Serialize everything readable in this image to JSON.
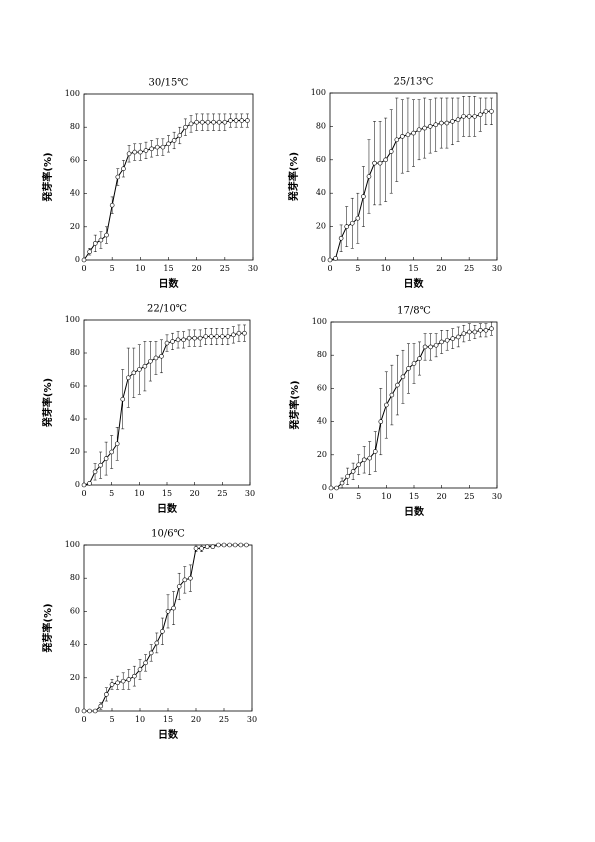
{
  "chart_data": [
    {
      "type": "line",
      "title": "30/15℃",
      "xlabel": "日数",
      "ylabel": "発芽率(%)",
      "color": "#000000",
      "x": [
        0,
        1,
        2,
        3,
        4,
        5,
        6,
        7,
        8,
        9,
        10,
        11,
        12,
        13,
        14,
        15,
        16,
        17,
        18,
        19,
        20,
        21,
        22,
        23,
        24,
        25,
        26,
        27,
        28,
        29
      ],
      "values": [
        0,
        5,
        10,
        12,
        15,
        33,
        50,
        55,
        64,
        65,
        65,
        66,
        67,
        68,
        68,
        70,
        72,
        75,
        80,
        82,
        83,
        83,
        83,
        83,
        83,
        83,
        84,
        84,
        84,
        84
      ],
      "errors": [
        0,
        2,
        5,
        5,
        5,
        5,
        5,
        5,
        5,
        5,
        5,
        5,
        5,
        5,
        5,
        5,
        5,
        5,
        5,
        5,
        5,
        5,
        5,
        5,
        5,
        5,
        4,
        4,
        4,
        4
      ],
      "xlim": [
        0,
        30
      ],
      "ylim": [
        0,
        100
      ],
      "xticks": [
        0,
        5,
        10,
        15,
        20,
        25,
        30
      ],
      "yticks": [
        0,
        20,
        40,
        60,
        80,
        100
      ]
    },
    {
      "type": "line",
      "title": "25/13℃",
      "xlabel": "日数",
      "ylabel": "発芽率(%)",
      "color": "#000000",
      "x": [
        0,
        1,
        2,
        3,
        4,
        5,
        6,
        7,
        8,
        9,
        10,
        11,
        12,
        13,
        14,
        15,
        16,
        17,
        18,
        19,
        20,
        21,
        22,
        23,
        24,
        25,
        26,
        27,
        28,
        29
      ],
      "values": [
        0,
        1,
        13,
        20,
        22,
        25,
        38,
        50,
        58,
        58,
        60,
        65,
        72,
        74,
        75,
        76,
        78,
        79,
        80,
        81,
        82,
        82,
        83,
        84,
        86,
        86,
        86,
        87,
        89,
        89
      ],
      "errors": [
        0,
        1,
        8,
        12,
        15,
        15,
        18,
        22,
        25,
        25,
        25,
        25,
        25,
        22,
        22,
        20,
        18,
        18,
        16,
        16,
        15,
        15,
        14,
        13,
        12,
        12,
        12,
        10,
        8,
        8
      ],
      "xlim": [
        0,
        30
      ],
      "ylim": [
        0,
        100
      ],
      "xticks": [
        0,
        5,
        10,
        15,
        20,
        25,
        30
      ],
      "yticks": [
        0,
        20,
        40,
        60,
        80,
        100
      ]
    },
    {
      "type": "line",
      "title": "22/10℃",
      "xlabel": "日数",
      "ylabel": "発芽率(%)",
      "color": "#000000",
      "x": [
        0,
        1,
        2,
        3,
        4,
        5,
        6,
        7,
        8,
        9,
        10,
        11,
        12,
        13,
        14,
        15,
        16,
        17,
        18,
        19,
        20,
        21,
        22,
        23,
        24,
        25,
        26,
        27,
        28,
        29
      ],
      "values": [
        0,
        1,
        8,
        12,
        16,
        20,
        25,
        52,
        65,
        68,
        70,
        72,
        75,
        77,
        78,
        86,
        87,
        88,
        88,
        89,
        89,
        89,
        90,
        90,
        90,
        90,
        90,
        91,
        92,
        92
      ],
      "errors": [
        0,
        1,
        5,
        8,
        10,
        10,
        10,
        18,
        18,
        15,
        15,
        15,
        12,
        10,
        10,
        5,
        5,
        5,
        5,
        5,
        5,
        5,
        5,
        5,
        5,
        5,
        5,
        5,
        5,
        5
      ],
      "xlim": [
        0,
        30
      ],
      "ylim": [
        0,
        100
      ],
      "xticks": [
        0,
        5,
        10,
        15,
        20,
        25,
        30
      ],
      "yticks": [
        0,
        20,
        40,
        60,
        80,
        100
      ]
    },
    {
      "type": "line",
      "title": "17/8℃",
      "xlabel": "日数",
      "ylabel": "発芽率(%)",
      "color": "#000000",
      "x": [
        0,
        1,
        2,
        3,
        4,
        5,
        6,
        7,
        8,
        9,
        10,
        11,
        12,
        13,
        14,
        15,
        16,
        17,
        18,
        19,
        20,
        21,
        22,
        23,
        24,
        25,
        26,
        27,
        28,
        29
      ],
      "values": [
        0,
        0,
        3,
        7,
        10,
        14,
        17,
        18,
        22,
        40,
        50,
        56,
        62,
        67,
        72,
        75,
        78,
        85,
        85,
        86,
        88,
        89,
        90,
        91,
        93,
        94,
        94,
        95,
        95,
        96
      ],
      "errors": [
        0,
        0,
        3,
        5,
        5,
        6,
        8,
        10,
        12,
        20,
        20,
        18,
        18,
        16,
        15,
        12,
        10,
        8,
        8,
        7,
        7,
        6,
        6,
        6,
        5,
        5,
        4,
        4,
        4,
        4
      ],
      "xlim": [
        0,
        30
      ],
      "ylim": [
        0,
        100
      ],
      "xticks": [
        0,
        5,
        10,
        15,
        20,
        25,
        30
      ],
      "yticks": [
        0,
        20,
        40,
        60,
        80,
        100
      ]
    },
    {
      "type": "line",
      "title": "10/6℃",
      "xlabel": "日数",
      "ylabel": "発芽率(%)",
      "color": "#000000",
      "x": [
        0,
        1,
        2,
        3,
        4,
        5,
        6,
        7,
        8,
        9,
        10,
        11,
        12,
        13,
        14,
        15,
        16,
        17,
        18,
        19,
        20,
        21,
        22,
        23,
        24,
        25,
        26,
        27,
        28,
        29
      ],
      "values": [
        0,
        0,
        0,
        3,
        10,
        16,
        17,
        18,
        19,
        21,
        25,
        29,
        35,
        41,
        48,
        60,
        62,
        75,
        79,
        80,
        98,
        98,
        99,
        99,
        100,
        100,
        100,
        100,
        100,
        100
      ],
      "errors": [
        0,
        0,
        0,
        2,
        4,
        3,
        4,
        5,
        6,
        6,
        6,
        5,
        5,
        6,
        8,
        10,
        10,
        8,
        8,
        8,
        2,
        2,
        1,
        1,
        0,
        0,
        0,
        0,
        0,
        0
      ],
      "xlim": [
        0,
        30
      ],
      "ylim": [
        0,
        100
      ],
      "xticks": [
        0,
        5,
        10,
        15,
        20,
        25,
        30
      ],
      "yticks": [
        0,
        20,
        40,
        60,
        80,
        100
      ]
    }
  ]
}
